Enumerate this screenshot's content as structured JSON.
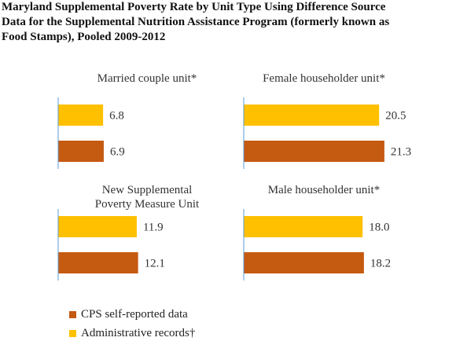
{
  "title_lines": [
    "Maryland Supplemental Poverty Rate by Unit Type Using Difference Source",
    "Data for the Supplemental Nutrition Assistance Program (formerly known as",
    "Food Stamps), Pooled 2009-2012"
  ],
  "colors": {
    "admin": "#FFC000",
    "cps": "#C55A11",
    "axis": "#5B9BD5"
  },
  "legend": {
    "cps_label": "CPS self-reported data",
    "admin_label": "Administrative records†"
  },
  "chart_data": [
    {
      "type": "bar",
      "orientation": "horizontal",
      "title_lines": [
        "Married couple unit*"
      ],
      "series": [
        {
          "name": "Administrative records†",
          "value": 6.8
        },
        {
          "name": "CPS self-reported data",
          "value": 6.9
        }
      ]
    },
    {
      "type": "bar",
      "orientation": "horizontal",
      "title_lines": [
        "Female householder unit*"
      ],
      "series": [
        {
          "name": "Administrative records†",
          "value": 20.5
        },
        {
          "name": "CPS self-reported data",
          "value": 21.3
        }
      ]
    },
    {
      "type": "bar",
      "orientation": "horizontal",
      "title_lines": [
        "New Supplemental",
        "Poverty Measure Unit"
      ],
      "series": [
        {
          "name": "Administrative records†",
          "value": 11.9
        },
        {
          "name": "CPS self-reported data",
          "value": 12.1
        }
      ]
    },
    {
      "type": "bar",
      "orientation": "horizontal",
      "title_lines": [
        "Male householder unit*"
      ],
      "series": [
        {
          "name": "Administrative records†",
          "value": 18.0
        },
        {
          "name": "CPS self-reported data",
          "value": 18.2
        }
      ]
    }
  ]
}
